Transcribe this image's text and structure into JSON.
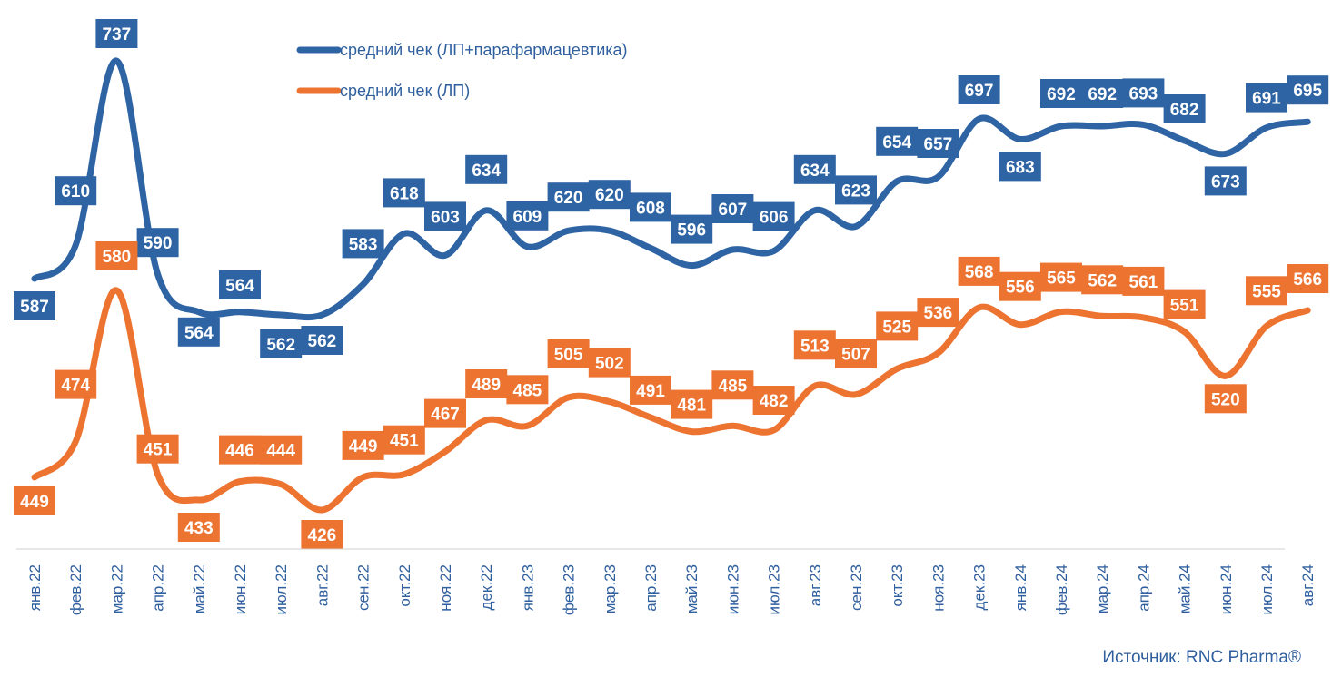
{
  "chart_data": {
    "type": "line",
    "categories": [
      "янв.22",
      "фев.22",
      "мар.22",
      "апр.22",
      "май.22",
      "июн.22",
      "июл.22",
      "авг.22",
      "сен.22",
      "окт.22",
      "ноя.22",
      "дек.22",
      "янв.23",
      "фев.23",
      "мар.23",
      "апр.23",
      "май.23",
      "июн.23",
      "июл.23",
      "авг.23",
      "сен.23",
      "окт.23",
      "ноя.23",
      "дек.23",
      "янв.24",
      "фев.24",
      "мар.24",
      "апр.24",
      "май.24",
      "июн.24",
      "июл.24",
      "авг.24"
    ],
    "series": [
      {
        "name": "средний чек (ЛП+парафармацевтика)",
        "color": "#2e64a4",
        "values": [
          587,
          610,
          737,
          590,
          564,
          564,
          562,
          562,
          583,
          618,
          603,
          634,
          609,
          620,
          620,
          608,
          596,
          607,
          606,
          634,
          623,
          654,
          657,
          697,
          683,
          692,
          692,
          693,
          682,
          673,
          691,
          695
        ]
      },
      {
        "name": "средний чек (ЛП)",
        "color": "#ed7331",
        "values": [
          449,
          474,
          580,
          451,
          433,
          446,
          444,
          426,
          449,
          451,
          467,
          489,
          485,
          505,
          502,
          491,
          481,
          485,
          482,
          513,
          507,
          525,
          536,
          568,
          556,
          565,
          562,
          561,
          551,
          520,
          555,
          566
        ]
      }
    ],
    "legend_position": "top-center",
    "grid": false
  },
  "source_text": "Источник: RNC Pharma®"
}
